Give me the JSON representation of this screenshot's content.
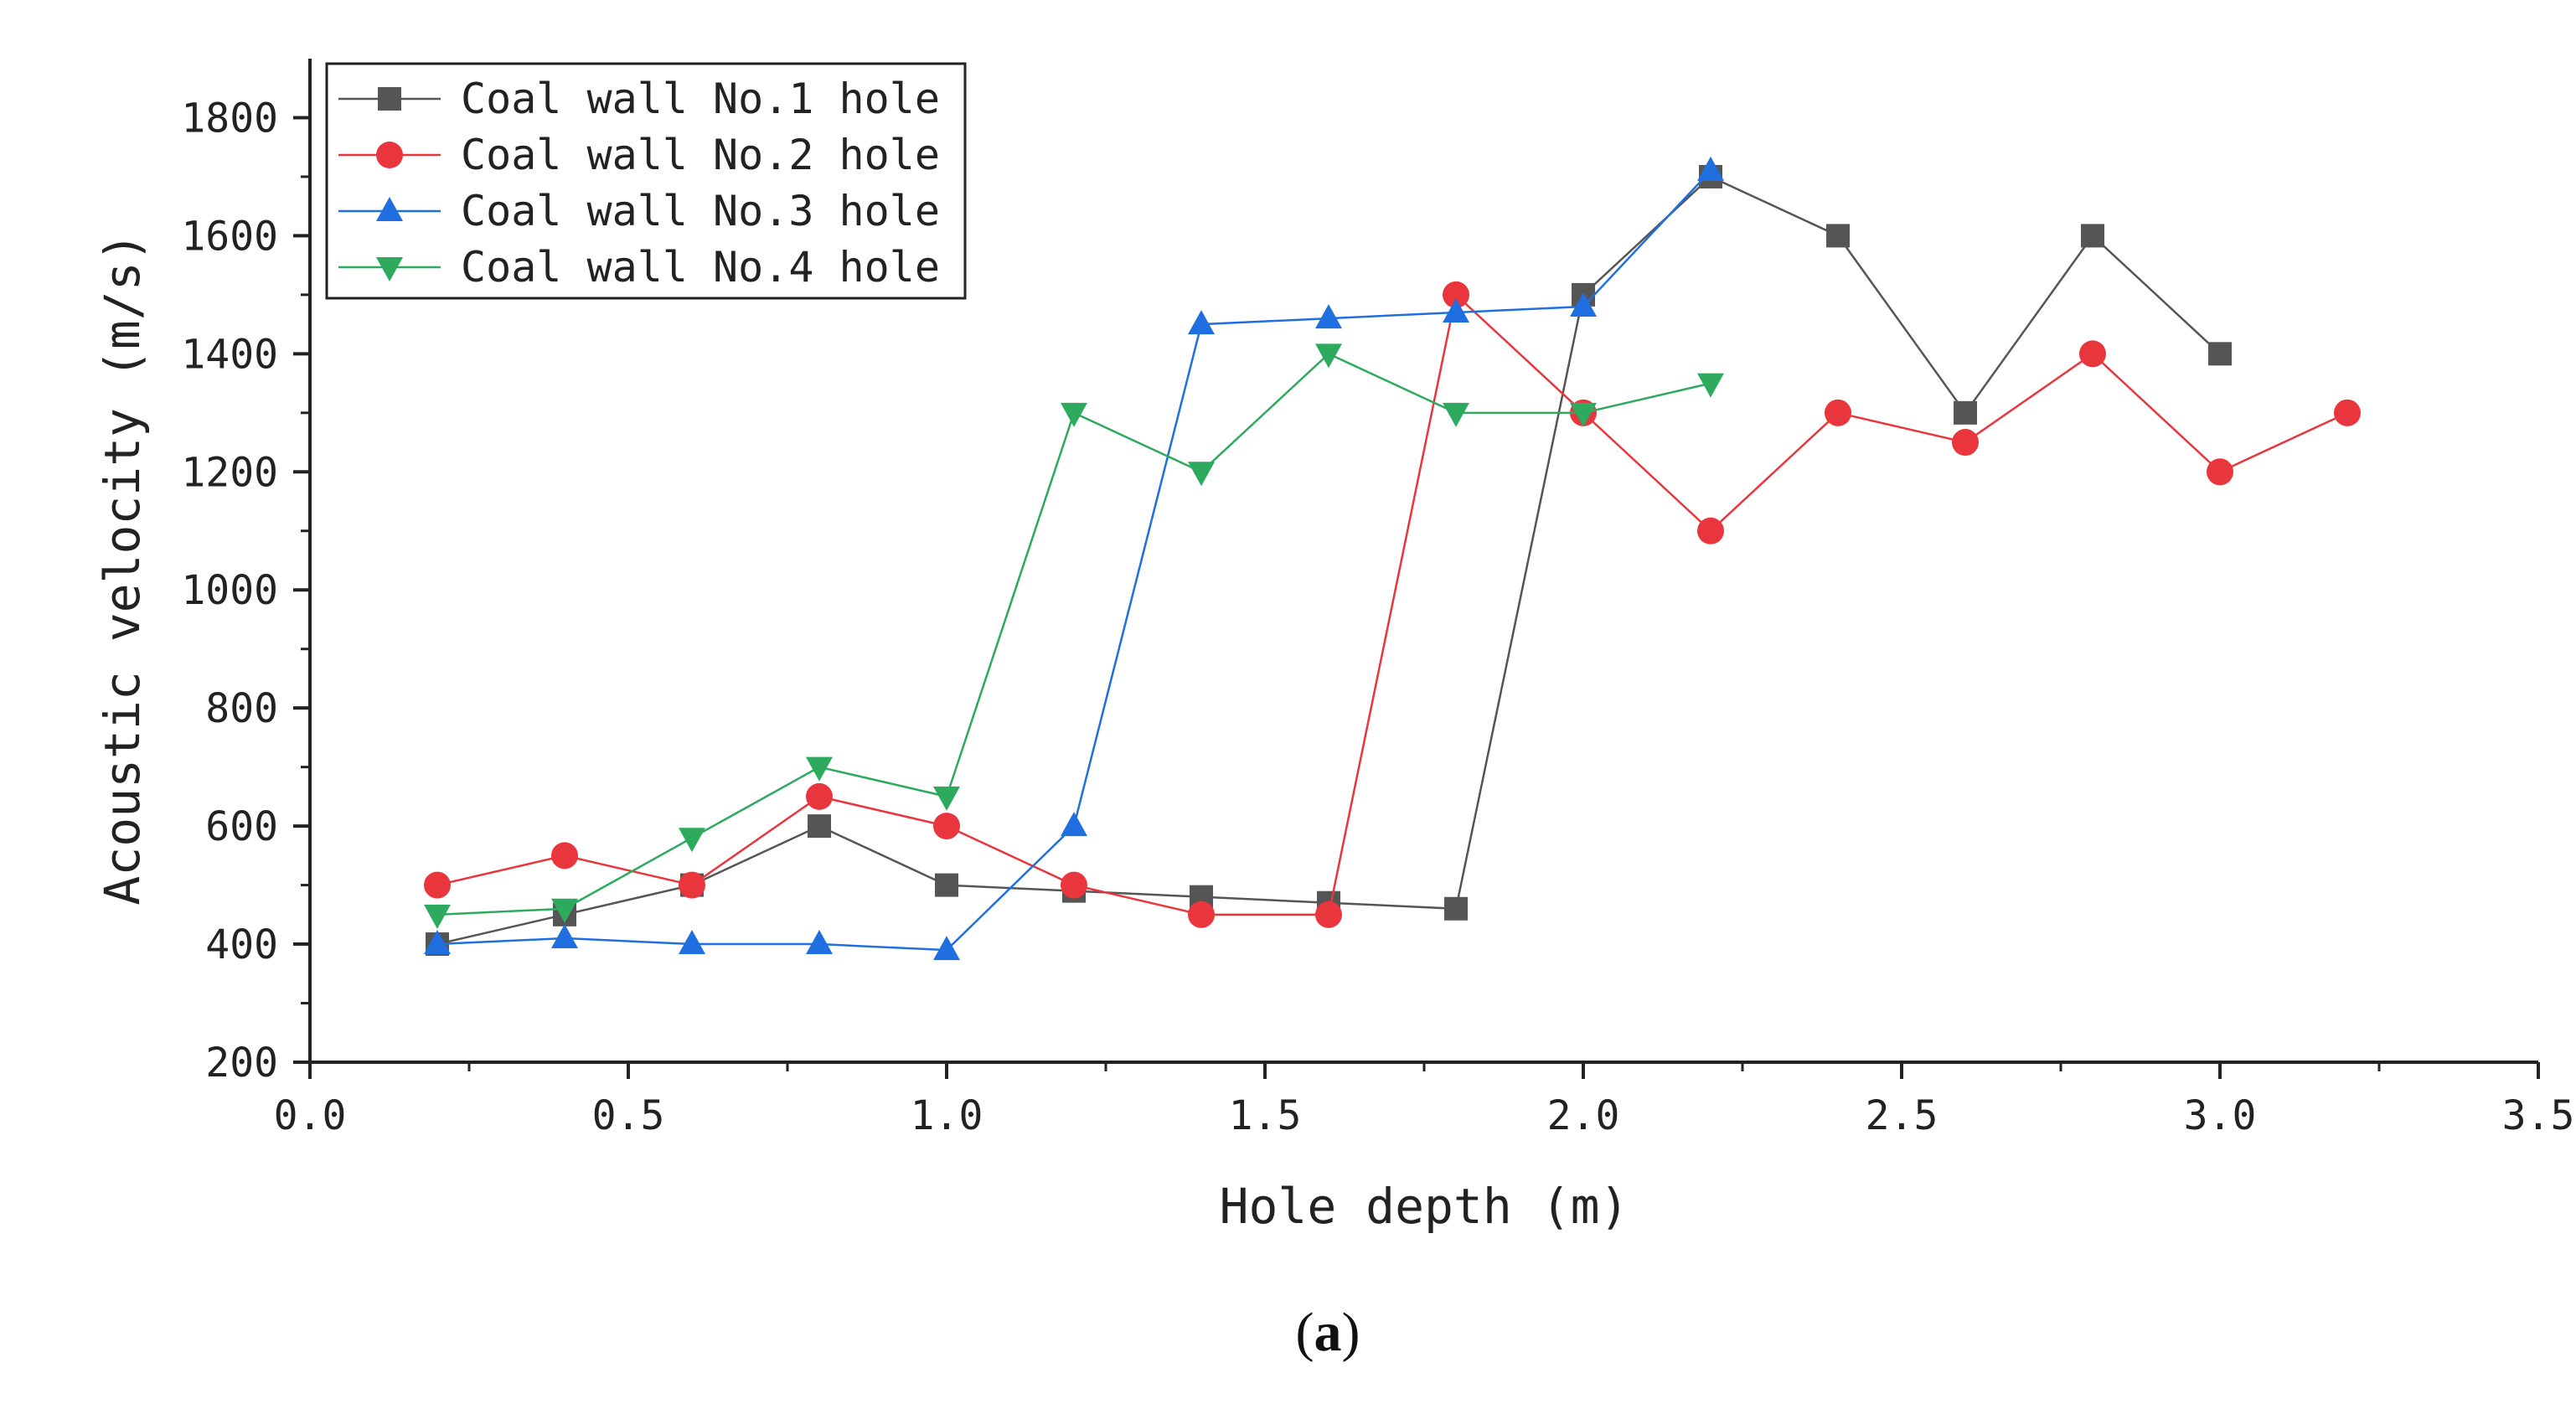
{
  "chart_data": {
    "type": "line",
    "title": "",
    "xlabel": "Hole depth (m)",
    "ylabel": "Acoustic velocity (m/s)",
    "xlim": [
      0.0,
      3.5
    ],
    "ylim": [
      200,
      1900
    ],
    "xticks": [
      0.0,
      0.5,
      1.0,
      1.5,
      2.0,
      2.5,
      3.0,
      3.5
    ],
    "xtick_labels": [
      "0.0",
      "0.5",
      "1.0",
      "1.5",
      "2.0",
      "2.5",
      "3.0",
      "3.5"
    ],
    "yticks": [
      200,
      400,
      600,
      800,
      1000,
      1200,
      1400,
      1600,
      1800
    ],
    "ytick_labels": [
      "200",
      "400",
      "600",
      "800",
      "1000",
      "1200",
      "1400",
      "1600",
      "1800"
    ],
    "legend_position": "top-left",
    "grid": false,
    "panel_label": {
      "open": "(",
      "letter": "a",
      "close": ")"
    },
    "series": [
      {
        "name": "Coal wall No.1 hole",
        "color": "#555555",
        "marker": "square",
        "x": [
          0.2,
          0.4,
          0.6,
          0.8,
          1.0,
          1.2,
          1.4,
          1.6,
          1.8,
          2.0,
          2.2,
          2.4,
          2.6,
          2.8,
          3.0
        ],
        "y": [
          400,
          450,
          500,
          600,
          500,
          490,
          480,
          470,
          460,
          1500,
          1700,
          1600,
          1300,
          1600,
          1400
        ]
      },
      {
        "name": "Coal wall No.2 hole",
        "color": "#e8363c",
        "marker": "circle",
        "x": [
          0.2,
          0.4,
          0.6,
          0.8,
          1.0,
          1.2,
          1.4,
          1.6,
          1.8,
          2.0,
          2.2,
          2.4,
          2.6,
          2.8,
          3.0,
          3.2
        ],
        "y": [
          500,
          550,
          500,
          650,
          600,
          500,
          450,
          450,
          1500,
          1300,
          1100,
          1300,
          1250,
          1400,
          1200,
          1300
        ]
      },
      {
        "name": "Coal wall No.3 hole",
        "color": "#1f6fe0",
        "marker": "triangle-up",
        "x": [
          0.2,
          0.4,
          0.6,
          0.8,
          1.0,
          1.2,
          1.4,
          1.6,
          1.8,
          2.0,
          2.2
        ],
        "y": [
          400,
          410,
          400,
          400,
          390,
          600,
          1450,
          1460,
          1470,
          1480,
          1710
        ]
      },
      {
        "name": "Coal wall No.4 hole",
        "color": "#2eaa5e",
        "marker": "triangle-down",
        "x": [
          0.2,
          0.4,
          0.6,
          0.8,
          1.0,
          1.2,
          1.4,
          1.6,
          1.8,
          2.0,
          2.2
        ],
        "y": [
          450,
          460,
          580,
          700,
          650,
          1300,
          1200,
          1400,
          1300,
          1300,
          1350
        ]
      }
    ]
  }
}
